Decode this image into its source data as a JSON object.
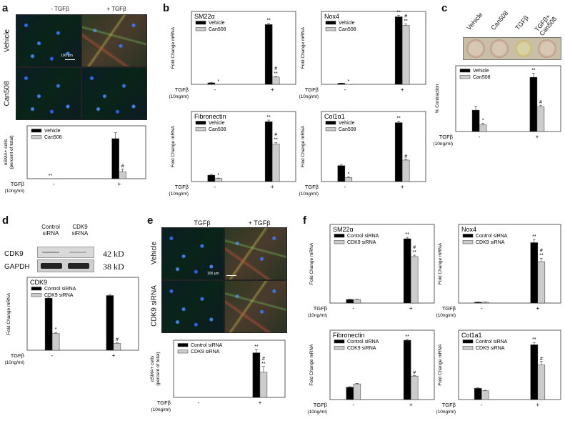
{
  "panels": {
    "a": {
      "letter": "a",
      "col_headers": [
        "- TGFβ",
        "+ TGFβ"
      ],
      "row_labels": [
        "Vehicle",
        "Can508"
      ],
      "scalebar": "100 μm",
      "chart": {
        "ylabel": "αSMA+ cells\n(percent of total)"
      }
    },
    "b": {
      "letter": "b"
    },
    "c": {
      "letter": "c",
      "wells": [
        "Vehicle",
        "Can508",
        "TGFβ",
        "TGFβ+\nCan508"
      ]
    },
    "d": {
      "letter": "d",
      "blot_headers": [
        "Control\nsiRNA",
        "CDK9\nsiRNA"
      ],
      "blot_rows": [
        "CDK9",
        "GAPDH"
      ],
      "kd": [
        "42 kD",
        "38 kD"
      ]
    },
    "e": {
      "letter": "e",
      "col_headers": [
        "TGFβ",
        "+ TGFβ"
      ],
      "row_labels": [
        "Vehicle",
        "CDK9 siRNA"
      ],
      "scalebar": "100 μm"
    },
    "f": {
      "letter": "f"
    }
  },
  "axis_common": {
    "tgf_label": "TGFβ",
    "tgf_sub": "(10ng/ml)",
    "minus": "-",
    "plus": "+"
  },
  "chart_data": [
    {
      "id": "a",
      "type": "bar",
      "title": "",
      "ylabel": "αSMA+ cells\n(percent of total)",
      "categories": [
        "-",
        "+"
      ],
      "series": [
        {
          "name": "Vehicle",
          "values": [
            0,
            53
          ],
          "err": [
            0,
            8
          ],
          "color": "#000000"
        },
        {
          "name": "Can508",
          "values": [
            0,
            9
          ],
          "err": [
            0,
            4
          ],
          "color": "#cccccc"
        }
      ],
      "annotations": [
        [
          "**",
          ""
        ],
        [
          "",
          "#"
        ]
      ],
      "ylim": [
        0,
        70
      ],
      "legend": "top-left"
    },
    {
      "id": "b1",
      "type": "bar",
      "title": "SM22α",
      "ylabel": "Fold Change mRNA",
      "categories": [
        "-",
        "+"
      ],
      "series": [
        {
          "name": "Vehicle",
          "values": [
            1,
            41
          ],
          "err": [
            0.2,
            0.8
          ],
          "color": "#000000"
        },
        {
          "name": "Can508",
          "values": [
            0,
            5
          ],
          "err": [
            0,
            0.4
          ],
          "color": "#cccccc"
        }
      ],
      "annotations": [
        [
          "",
          "**"
        ],
        [
          "*",
          "#\n**"
        ]
      ],
      "ylim": [
        0,
        50
      ],
      "legend": "top-left"
    },
    {
      "id": "b2",
      "type": "bar",
      "title": "Nox4",
      "ylabel": "Fold Change mRNA",
      "categories": [
        "-",
        "+"
      ],
      "series": [
        {
          "name": "Vehicle",
          "values": [
            1,
            63
          ],
          "err": [
            0.2,
            1.5
          ],
          "color": "#000000"
        },
        {
          "name": "Can508",
          "values": [
            0,
            55
          ],
          "err": [
            0,
            1.2
          ],
          "color": "#cccccc"
        }
      ],
      "annotations": [
        [
          "",
          "**"
        ],
        [
          "*",
          "#\n**"
        ]
      ],
      "ylim": [
        0,
        68
      ],
      "legend": "top-left"
    },
    {
      "id": "b3",
      "type": "bar",
      "title": "Fibronectin",
      "ylabel": "Fold Change mRNA",
      "categories": [
        "-",
        "+"
      ],
      "series": [
        {
          "name": "Vehicle",
          "values": [
            1,
            9.4
          ],
          "err": [
            0.1,
            0.25
          ],
          "color": "#000000"
        },
        {
          "name": "Can508",
          "values": [
            0.5,
            5.9
          ],
          "err": [
            0.05,
            0.2
          ],
          "color": "#cccccc"
        }
      ],
      "annotations": [
        [
          "",
          "**"
        ],
        [
          "*",
          "#\n**"
        ]
      ],
      "ylim": [
        0,
        11
      ],
      "legend": "top-left"
    },
    {
      "id": "b4",
      "type": "bar",
      "title": "Col1α1",
      "ylabel": "Fold Change mRNA",
      "categories": [
        "-",
        "+"
      ],
      "series": [
        {
          "name": "Vehicle",
          "values": [
            1,
            3.7
          ],
          "err": [
            0.08,
            0.1
          ],
          "color": "#000000"
        },
        {
          "name": "Can508",
          "values": [
            0.25,
            1.35
          ],
          "err": [
            0.05,
            0.05
          ],
          "color": "#cccccc"
        }
      ],
      "annotations": [
        [
          "",
          "**"
        ],
        [
          "*",
          "#"
        ]
      ],
      "ylim": [
        0,
        4.4
      ],
      "legend": "top-left"
    },
    {
      "id": "c",
      "type": "bar",
      "title": "",
      "ylabel": "% Contraction",
      "categories": [
        "-",
        "+"
      ],
      "series": [
        {
          "name": "Vehicle",
          "values": [
            13,
            33
          ],
          "err": [
            2.5,
            2.5
          ],
          "color": "#000000"
        },
        {
          "name": "Can508",
          "values": [
            4,
            15
          ],
          "err": [
            1,
            1
          ],
          "color": "#cccccc"
        }
      ],
      "annotations": [
        [
          "",
          "**"
        ],
        [
          "*",
          "#"
        ]
      ],
      "ylim": [
        0,
        40
      ],
      "legend": "top-left"
    },
    {
      "id": "d",
      "type": "bar",
      "title": "CDK9",
      "ylabel": "Fold Change mRNA",
      "categories": [
        "-",
        "+"
      ],
      "series": [
        {
          "name": "Control siRNA",
          "values": [
            1,
            1.05
          ],
          "err": [
            0.02,
            0.02
          ],
          "color": "#000000"
        },
        {
          "name": "CDK9 siRNA",
          "values": [
            0.32,
            0.13
          ],
          "err": [
            0.02,
            0.02
          ],
          "color": "#cccccc"
        }
      ],
      "annotations": [
        [
          "",
          ""
        ],
        [
          "*",
          "#"
        ]
      ],
      "ylim": [
        0,
        1.4
      ],
      "legend": "top-left"
    },
    {
      "id": "e",
      "type": "bar",
      "title": "",
      "ylabel": "αSMA+ cells\n(percent of total)",
      "categories": [
        "-",
        "+"
      ],
      "series": [
        {
          "name": "Control siRNA",
          "values": [
            0,
            39
          ],
          "err": [
            0,
            3
          ],
          "color": "#000000"
        },
        {
          "name": "CDK9 siRNA",
          "values": [
            0,
            22
          ],
          "err": [
            0,
            5
          ],
          "color": "#cccccc"
        }
      ],
      "annotations": [
        [
          "",
          "**"
        ],
        [
          "",
          "#\n**"
        ]
      ],
      "ylim": [
        0,
        50
      ],
      "legend": "top-left"
    },
    {
      "id": "f1",
      "type": "bar",
      "title": "SM22α",
      "ylabel": "Fold Change mRNA",
      "categories": [
        "-",
        "+"
      ],
      "series": [
        {
          "name": "Control siRNA",
          "values": [
            1,
            18
          ],
          "err": [
            0.1,
            0.4
          ],
          "color": "#000000"
        },
        {
          "name": "CDK9 siRNA",
          "values": [
            1,
            13
          ],
          "err": [
            0.1,
            0.4
          ],
          "color": "#cccccc"
        }
      ],
      "annotations": [
        [
          "",
          "**"
        ],
        [
          "",
          "#\n**"
        ]
      ],
      "ylim": [
        0,
        22
      ],
      "legend": "top-left"
    },
    {
      "id": "f2",
      "type": "bar",
      "title": "Nox4",
      "ylabel": "Fold Change mRNA",
      "categories": [
        "-",
        "+"
      ],
      "series": [
        {
          "name": "Control siRNA",
          "values": [
            1,
            73
          ],
          "err": [
            0.3,
            4
          ],
          "color": "#000000"
        },
        {
          "name": "CDK9 siRNA",
          "values": [
            1,
            50
          ],
          "err": [
            0.3,
            4
          ],
          "color": "#cccccc"
        }
      ],
      "annotations": [
        [
          "",
          "**"
        ],
        [
          "",
          "#\n**"
        ]
      ],
      "ylim": [
        0,
        95
      ],
      "legend": "top-left"
    },
    {
      "id": "f3",
      "type": "bar",
      "title": "Fibronectin",
      "ylabel": "Fold Change mRNA",
      "categories": [
        "-",
        "+"
      ],
      "series": [
        {
          "name": "Control siRNA",
          "values": [
            1.1,
            5.3
          ],
          "err": [
            0.05,
            0.08
          ],
          "color": "#000000"
        },
        {
          "name": "CDK9 siRNA",
          "values": [
            1.4,
            2.1
          ],
          "err": [
            0.05,
            0.05
          ],
          "color": "#cccccc"
        }
      ],
      "annotations": [
        [
          "",
          "**"
        ],
        [
          "",
          "#"
        ]
      ],
      "ylim": [
        0,
        6.2
      ],
      "legend": "top-left"
    },
    {
      "id": "f4",
      "type": "bar",
      "title": "Col1a1",
      "ylabel": "Fold Change mRNA",
      "categories": [
        "-",
        "+"
      ],
      "series": [
        {
          "name": "Control siRNA",
          "values": [
            1,
            4.9
          ],
          "err": [
            0.05,
            0.2
          ],
          "color": "#000000"
        },
        {
          "name": "CDK9 siRNA",
          "values": [
            0.78,
            3.1
          ],
          "err": [
            0.05,
            0.3
          ],
          "color": "#cccccc"
        }
      ],
      "annotations": [
        [
          "",
          "**"
        ],
        [
          "",
          "#"
        ]
      ],
      "ylim": [
        0,
        6.2
      ],
      "legend": "top-left"
    }
  ]
}
